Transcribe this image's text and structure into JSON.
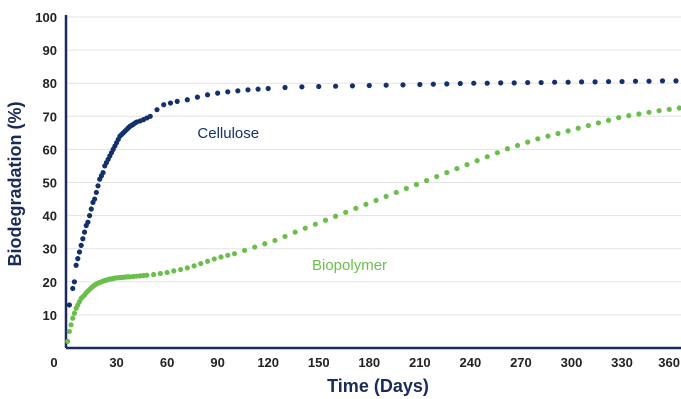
{
  "chart_data": {
    "type": "scatter",
    "title": "",
    "xlabel": "Time (Days)",
    "ylabel": "Biodegradation (%)",
    "xlim": [
      0,
      365
    ],
    "ylim": [
      0,
      100
    ],
    "x_ticks": [
      "0",
      "30",
      "60",
      "90",
      "120",
      "150",
      "180",
      "210",
      "240",
      "270",
      "300",
      "330",
      "360"
    ],
    "y_ticks": [
      "10",
      "20",
      "30",
      "40",
      "50",
      "60",
      "70",
      "80",
      "90",
      "100"
    ],
    "grid": "horizontal",
    "axis_color": "#1a2a5a",
    "series": [
      {
        "name": "Cellulose",
        "color": "#14306b",
        "x": [
          2,
          4,
          5,
          6,
          7,
          8,
          9,
          10,
          11,
          12,
          13,
          14,
          15,
          16,
          17,
          18,
          19,
          20,
          21,
          22,
          23,
          24,
          25,
          26,
          27,
          28,
          29,
          30,
          31,
          32,
          33,
          34,
          35,
          36,
          37,
          38,
          39,
          40,
          41,
          42,
          44,
          46,
          48,
          50,
          54,
          58,
          62,
          66,
          72,
          78,
          84,
          90,
          96,
          102,
          108,
          114,
          120,
          130,
          140,
          150,
          160,
          170,
          180,
          190,
          200,
          210,
          218,
          226,
          234,
          242,
          250,
          258,
          266,
          274,
          282,
          290,
          298,
          306,
          314,
          322,
          330,
          338,
          346,
          354,
          362
        ],
        "y": [
          13,
          18,
          20,
          25,
          27,
          29,
          31,
          33,
          35,
          37,
          38,
          40,
          42,
          44,
          45,
          47,
          49,
          51,
          52,
          53,
          55,
          56,
          57,
          58,
          59,
          60,
          61,
          62,
          63,
          64,
          64.5,
          65,
          65.5,
          66,
          66.5,
          67,
          67.3,
          67.6,
          68,
          68.3,
          68.6,
          69,
          69.5,
          70,
          72,
          73.5,
          74,
          74.5,
          75,
          75.8,
          76.5,
          77,
          77.4,
          77.7,
          78,
          78.2,
          78.4,
          78.7,
          78.9,
          79,
          79.1,
          79.2,
          79.3,
          79.4,
          79.5,
          79.6,
          79.7,
          79.8,
          79.9,
          80,
          80,
          80.1,
          80.1,
          80.2,
          80.2,
          80.3,
          80.3,
          80.4,
          80.4,
          80.5,
          80.5,
          80.6,
          80.6,
          80.7,
          80.7
        ]
      },
      {
        "name": "Biopolymer",
        "color": "#6abf4b",
        "x": [
          1,
          2,
          3,
          4,
          5,
          6,
          7,
          8,
          9,
          10,
          11,
          12,
          13,
          14,
          15,
          16,
          17,
          18,
          19,
          20,
          21,
          22,
          23,
          24,
          25,
          26,
          27,
          28,
          29,
          30,
          31,
          32,
          33,
          34,
          35,
          36,
          37,
          38,
          40,
          42,
          44,
          46,
          48,
          52,
          56,
          60,
          64,
          68,
          72,
          76,
          80,
          84,
          88,
          92,
          96,
          100,
          106,
          112,
          118,
          124,
          130,
          136,
          142,
          148,
          154,
          160,
          166,
          172,
          178,
          184,
          190,
          196,
          202,
          208,
          214,
          220,
          226,
          232,
          238,
          244,
          250,
          256,
          262,
          268,
          274,
          280,
          286,
          292,
          298,
          304,
          310,
          316,
          322,
          328,
          334,
          340,
          346,
          352,
          358,
          364
        ],
        "y": [
          2,
          5,
          7,
          9,
          10.5,
          12,
          13,
          14,
          15,
          15.5,
          16,
          16.7,
          17.2,
          17.7,
          18.2,
          18.6,
          19,
          19.3,
          19.6,
          19.8,
          20,
          20.2,
          20.4,
          20.5,
          20.7,
          20.8,
          20.9,
          21,
          21.1,
          21.2,
          21.2,
          21.3,
          21.3,
          21.4,
          21.4,
          21.5,
          21.5,
          21.5,
          21.6,
          21.7,
          21.8,
          21.9,
          22,
          22.2,
          22.5,
          22.8,
          23.3,
          23.7,
          24.2,
          24.8,
          25.5,
          26.2,
          26.9,
          27.5,
          28,
          28.5,
          29.5,
          30.5,
          31.5,
          32.5,
          33.7,
          35,
          36.2,
          37.4,
          38.6,
          39.8,
          41,
          42.2,
          43.4,
          44.6,
          45.8,
          47,
          48.2,
          49.4,
          50.6,
          51.8,
          53,
          54.2,
          55.4,
          56.6,
          57.8,
          59,
          60.2,
          61.2,
          62.2,
          63.2,
          64,
          64.8,
          65.6,
          66.4,
          67.2,
          68,
          68.8,
          69.6,
          70.2,
          70.7,
          71.2,
          71.7,
          72.1,
          72.5
        ]
      }
    ],
    "annotations": [
      {
        "text": "Cellulose",
        "x": 78,
        "y": 63.5,
        "series": 0
      },
      {
        "text": "Biopolymer",
        "x": 146,
        "y": 23.5,
        "series": 1
      }
    ]
  }
}
